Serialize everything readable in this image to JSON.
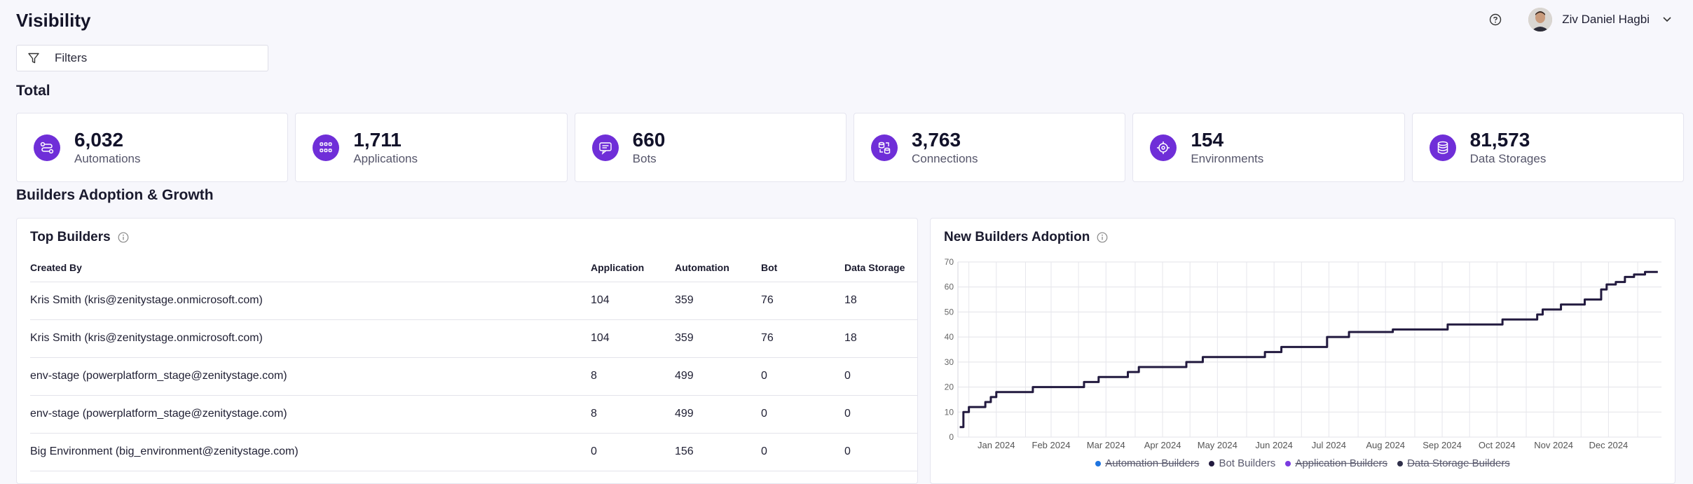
{
  "page": {
    "title": "Visibility"
  },
  "user": {
    "name": "Ziv Daniel Hagbi"
  },
  "filters": {
    "label": "Filters"
  },
  "total": {
    "title": "Total",
    "cards": [
      {
        "value": "6,032",
        "label": "Automations",
        "icon": "automation-icon"
      },
      {
        "value": "1,711",
        "label": "Applications",
        "icon": "apps-grid-icon"
      },
      {
        "value": "660",
        "label": "Bots",
        "icon": "bot-chat-icon"
      },
      {
        "value": "3,763",
        "label": "Connections",
        "icon": "connections-icon"
      },
      {
        "value": "154",
        "label": "Environments",
        "icon": "target-icon"
      },
      {
        "value": "81,573",
        "label": "Data Storages",
        "icon": "database-icon"
      }
    ]
  },
  "builders": {
    "title": "Builders Adoption & Growth",
    "top": {
      "title": "Top Builders",
      "columns": [
        "Created By",
        "Application",
        "Automation",
        "Bot",
        "Data Storage"
      ],
      "rows": [
        [
          "Kris Smith (kris@zenitystage.onmicrosoft.com)",
          "104",
          "359",
          "76",
          "18"
        ],
        [
          "Kris Smith (kris@zenitystage.onmicrosoft.com)",
          "104",
          "359",
          "76",
          "18"
        ],
        [
          "env-stage (powerplatform_stage@zenitystage.com)",
          "8",
          "499",
          "0",
          "0"
        ],
        [
          "env-stage (powerplatform_stage@zenitystage.com)",
          "8",
          "499",
          "0",
          "0"
        ],
        [
          "Big Environment (big_environment@zenitystage.com)",
          "0",
          "156",
          "0",
          "0"
        ]
      ]
    },
    "adoption": {
      "title": "New Builders Adoption"
    }
  },
  "colors": {
    "accent": "#6f2ed8",
    "line": "#221a3f",
    "automation": "#1e74e0",
    "bot": "#221a3f",
    "application": "#7a3be0",
    "datastorage": "#2f2f4a"
  },
  "chart_data": {
    "type": "line",
    "title": "New Builders Adoption",
    "x_ticks": [
      "Jan 2024",
      "Feb 2024",
      "Mar 2024",
      "Apr 2024",
      "May 2024",
      "Jun 2024",
      "Jul 2024",
      "Aug 2024",
      "Sep 2024",
      "Oct 2024",
      "Nov 2024",
      "Dec 2024"
    ],
    "ylim": [
      0,
      70
    ],
    "y_ticks": [
      0,
      10,
      20,
      30,
      40,
      50,
      60,
      70
    ],
    "grid": true,
    "step": true,
    "legend_position": "bottom",
    "legend": [
      {
        "name": "Automation Builders",
        "visible": false,
        "color": "#1e74e0"
      },
      {
        "name": "Bot Builders",
        "visible": true,
        "color": "#221a3f"
      },
      {
        "name": "Application Builders",
        "visible": false,
        "color": "#7a3be0"
      },
      {
        "name": "Data Storage Builders",
        "visible": false,
        "color": "#2f2f4a"
      }
    ],
    "series": [
      {
        "name": "Bot Builders",
        "points": [
          [
            "2023-12-27",
            4
          ],
          [
            "2023-12-29",
            10
          ],
          [
            "2024-01-01",
            12
          ],
          [
            "2024-01-10",
            14
          ],
          [
            "2024-01-13",
            16
          ],
          [
            "2024-01-16",
            18
          ],
          [
            "2024-02-05",
            20
          ],
          [
            "2024-03-04",
            22
          ],
          [
            "2024-03-12",
            24
          ],
          [
            "2024-03-28",
            26
          ],
          [
            "2024-04-03",
            28
          ],
          [
            "2024-04-29",
            30
          ],
          [
            "2024-05-08",
            32
          ],
          [
            "2024-06-11",
            34
          ],
          [
            "2024-06-20",
            36
          ],
          [
            "2024-07-15",
            40
          ],
          [
            "2024-07-27",
            42
          ],
          [
            "2024-08-20",
            43
          ],
          [
            "2024-09-19",
            45
          ],
          [
            "2024-10-19",
            47
          ],
          [
            "2024-11-07",
            49
          ],
          [
            "2024-11-10",
            51
          ],
          [
            "2024-11-20",
            53
          ],
          [
            "2024-12-03",
            55
          ],
          [
            "2024-12-12",
            59
          ],
          [
            "2024-12-15",
            61
          ],
          [
            "2024-12-20",
            62
          ],
          [
            "2024-12-25",
            64
          ],
          [
            "2024-12-30",
            65
          ],
          [
            "2025-01-05",
            66
          ],
          [
            "2025-01-12",
            66
          ]
        ]
      }
    ]
  }
}
